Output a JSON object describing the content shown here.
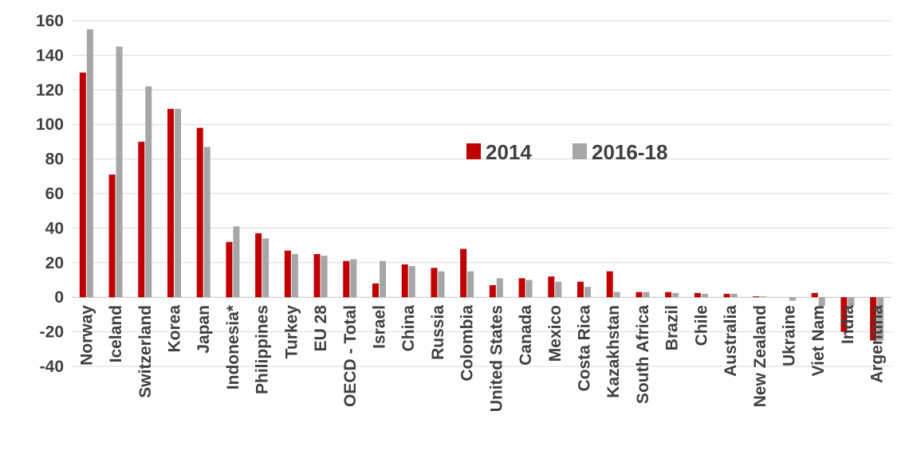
{
  "chart_data": {
    "type": "bar",
    "title": "",
    "xlabel": "",
    "ylabel": "",
    "ylim": [
      -40,
      160
    ],
    "yticks": [
      -40,
      -20,
      0,
      20,
      40,
      60,
      80,
      100,
      120,
      140,
      160
    ],
    "grid": true,
    "legend_position": "center-right",
    "categories": [
      "Norway",
      "Iceland",
      "Switzerland",
      "Korea",
      "Japan",
      "Indonesia*",
      "Philippines",
      "Turkey",
      "EU 28",
      "OECD - Total",
      "Israel",
      "China",
      "Russia",
      "Colombia",
      "United States",
      "Canada",
      "Mexico",
      "Costa Rica",
      "Kazakhstan",
      "South Africa",
      "Brazil",
      "Chile",
      "Australia",
      "New Zealand",
      "Ukraine",
      "Viet Nam",
      "India",
      "Argentina"
    ],
    "series": [
      {
        "name": "2014",
        "color": "#C00000",
        "values": [
          130,
          71,
          90,
          109,
          98,
          32,
          37,
          27,
          25,
          21,
          8,
          19,
          17,
          28,
          7,
          11,
          12,
          9,
          15,
          3,
          3,
          2.5,
          2,
          0.5,
          0,
          2.5,
          -20,
          -25
        ]
      },
      {
        "name": "2016-18",
        "color": "#A6A6A6",
        "values": [
          155,
          145,
          122,
          109,
          87,
          41,
          34,
          25,
          24,
          22,
          21,
          18,
          15,
          15,
          11,
          10,
          9,
          6,
          3,
          3,
          2.5,
          2,
          2,
          0.5,
          -2,
          -5,
          -5,
          -25
        ]
      }
    ]
  }
}
